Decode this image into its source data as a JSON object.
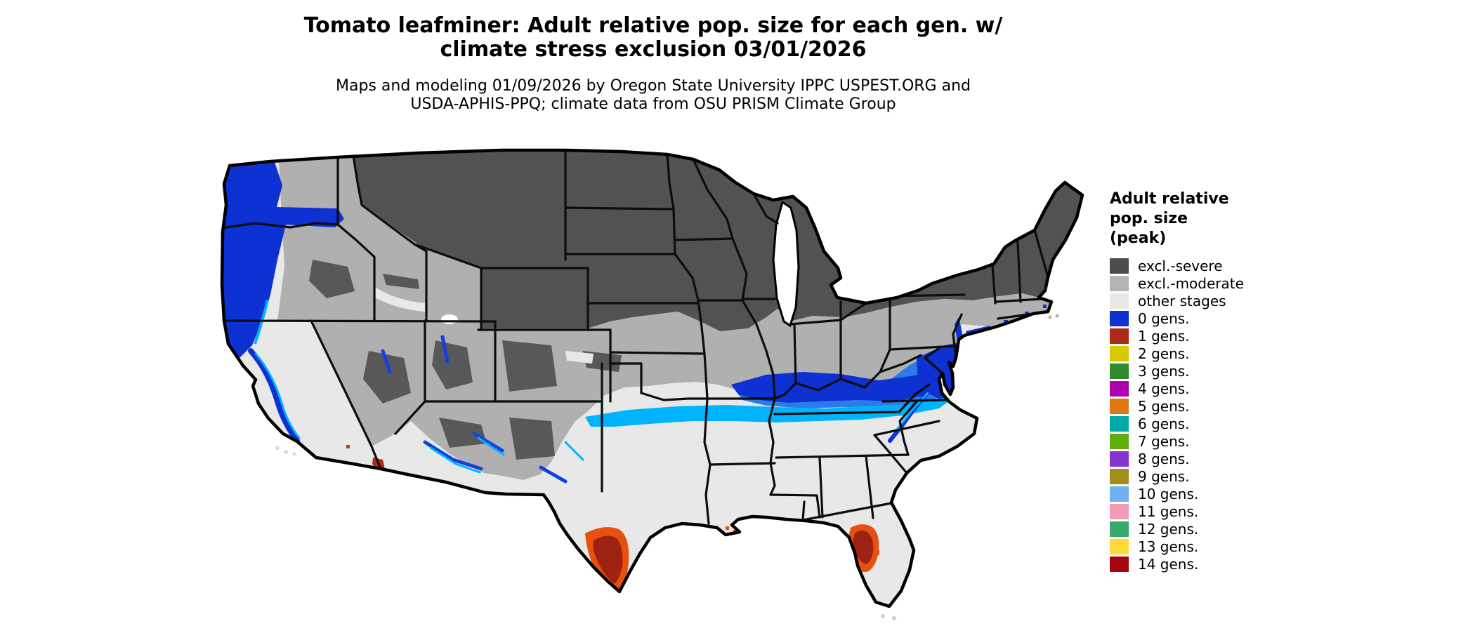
{
  "title": {
    "line1": "Tomato leafminer: Adult relative pop. size for each gen. w/",
    "line2": "climate stress exclusion 03/01/2026"
  },
  "subtitle": {
    "line1": "Maps and modeling 01/09/2026 by Oregon State University IPPC USPEST.ORG and",
    "line2": "USDA-APHIS-PPQ; climate data from OSU PRISM Climate Group"
  },
  "legend": {
    "title_lines": [
      "Adult relative",
      "pop. size",
      "(peak)"
    ],
    "items": [
      {
        "label": "excl.-severe",
        "color": "#4d4d4d"
      },
      {
        "label": "excl.-moderate",
        "color": "#b3b3b3"
      },
      {
        "label": "other stages",
        "color": "#e8e8e8"
      },
      {
        "label": "0 gens.",
        "color": "#0d31d2"
      },
      {
        "label": "1 gens.",
        "color": "#ad2a16"
      },
      {
        "label": "2 gens.",
        "color": "#d9ca00"
      },
      {
        "label": "3 gens.",
        "color": "#2d8b2a"
      },
      {
        "label": "4 gens.",
        "color": "#ae00ae"
      },
      {
        "label": "5 gens.",
        "color": "#de7912"
      },
      {
        "label": "6 gens.",
        "color": "#00a9a9"
      },
      {
        "label": "7 gens.",
        "color": "#5fae10"
      },
      {
        "label": "8 gens.",
        "color": "#8633cf"
      },
      {
        "label": "9 gens.",
        "color": "#a38d1a"
      },
      {
        "label": "10 gens.",
        "color": "#6fb0ee"
      },
      {
        "label": "11 gens.",
        "color": "#f29bb4"
      },
      {
        "label": "12 gens.",
        "color": "#3aa96c"
      },
      {
        "label": "13 gens.",
        "color": "#fed937"
      },
      {
        "label": "14 gens.",
        "color": "#a60211"
      }
    ]
  },
  "map": {
    "type": "geographic-raster-choropleth",
    "region": "Contiguous United States",
    "border_color": "#000000",
    "background_color": "#ffffff",
    "band_colors": {
      "severe_exclusion": "#525252",
      "moderate_exclusion": "#b0b0b0",
      "other_stages": "#e8e8e8",
      "zero_generations_blue": "#0d31d2",
      "band_mid_blue": "#2b7bea",
      "band_fringe_cyan": "#00b3ff",
      "one_generation_red": "#9e2212",
      "red_fringe_orange": "#e8500f"
    },
    "depicted_regions": [
      {
        "area": "Western Washington, Oregon coast, Cascades and Sierra foothills",
        "value": "0 gens."
      },
      {
        "area": "Northern Rockies, northern Plains, upper Midwest, interior Northeast",
        "value": "excl.-severe"
      },
      {
        "area": "Intermountain West, central Plains, Ohio Valley, New England coast fringe",
        "value": "excl.-moderate"
      },
      {
        "area": "Southern lowlands: California valleys, Southwest deserts, Texas, Gulf and Southeast states",
        "value": "other stages"
      },
      {
        "area": "Mid-latitude band from Oklahoma/Kansas through Kentucky-Tennessee to Virginia, Chesapeake Bay, Delmarva, New Jersey and Long Island",
        "value": "0 gens. with cyan southern fringe"
      },
      {
        "area": "South Texas (Lower Rio Grande Valley)",
        "value": "1 gens."
      },
      {
        "area": "Central Gulf coast of Florida (Tampa area)",
        "value": "1 gens."
      },
      {
        "area": "Yuma area at California-Arizona border",
        "value": "1 gens."
      },
      {
        "area": "Louisiana delta specks",
        "value": "1 gens. fringe"
      }
    ]
  }
}
